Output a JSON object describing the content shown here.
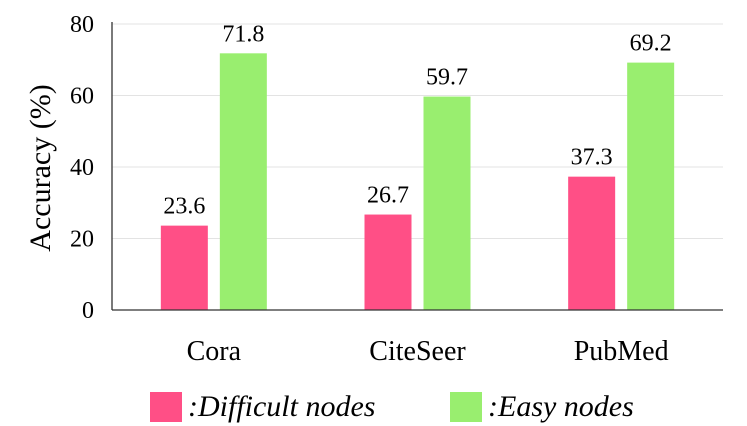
{
  "chart_data": {
    "type": "bar",
    "categories": [
      "Cora",
      "CiteSeer",
      "PubMed"
    ],
    "series": [
      {
        "name": ":Difficult nodes",
        "values": [
          23.6,
          26.7,
          37.3
        ],
        "color": "#ff4f86"
      },
      {
        "name": ":Easy nodes",
        "values": [
          71.8,
          59.7,
          69.2
        ],
        "color": "#99ee6f"
      }
    ],
    "value_labels": [
      [
        "23.6",
        "26.7",
        "37.3"
      ],
      [
        "71.8",
        "59.7",
        "69.2"
      ]
    ],
    "ylabel": "Accuracy (%)",
    "xlabel": "",
    "ylim": [
      0,
      80
    ],
    "yticks": [
      "0",
      "20",
      "40",
      "60",
      "80"
    ],
    "grid": true,
    "legend_position": "bottom"
  }
}
